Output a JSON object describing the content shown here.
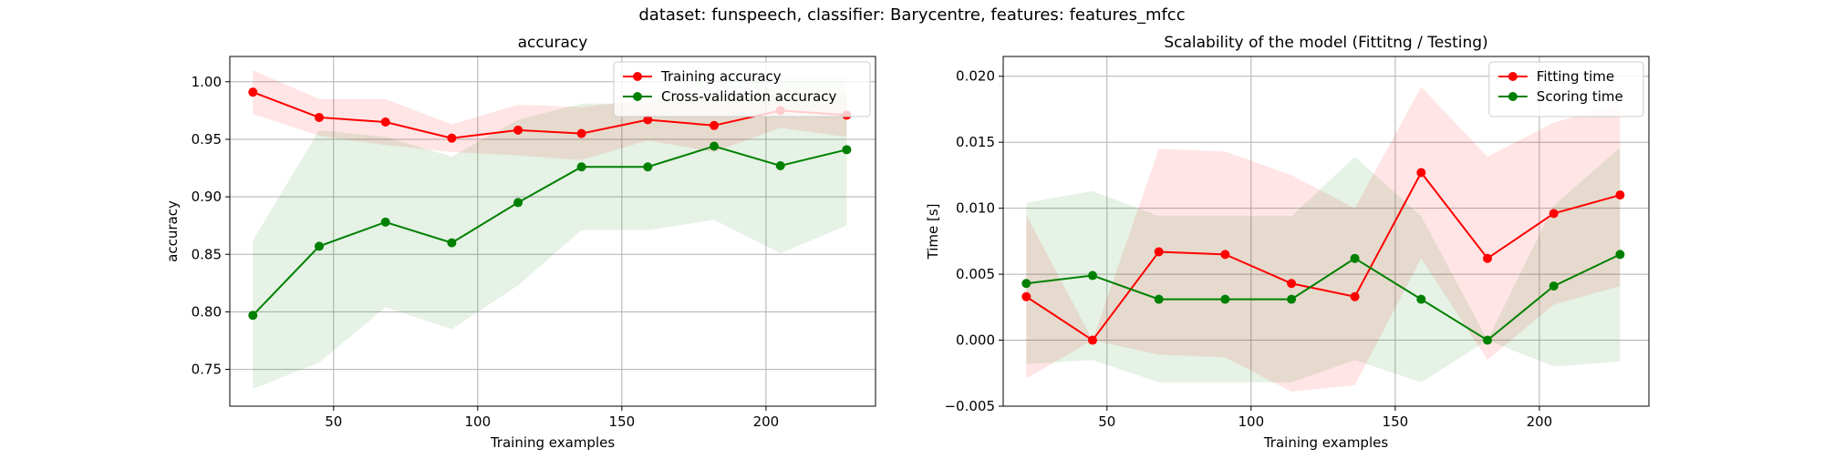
{
  "figure": {
    "suptitle": "dataset: funspeech, classifier: Barycentre, features: features_mfcc"
  },
  "chart_data": [
    {
      "type": "line",
      "title": "accuracy",
      "xlabel": "Training examples",
      "ylabel": "accuracy",
      "xlim": [
        14,
        238
      ],
      "ylim": [
        0.718,
        1.022
      ],
      "xticks": [
        50,
        100,
        150,
        200
      ],
      "yticks": [
        0.75,
        0.8,
        0.85,
        0.9,
        0.95,
        1.0
      ],
      "ytick_labels": [
        "0.75",
        "0.80",
        "0.85",
        "0.90",
        "0.95",
        "1.00"
      ],
      "grid": true,
      "legend_position": "upper-right",
      "x": [
        22,
        45,
        68,
        91,
        114,
        136,
        159,
        182,
        205,
        228
      ],
      "series": [
        {
          "name": "Training accuracy",
          "color": "#ff0000",
          "band_color": "#ff0000",
          "values": [
            0.991,
            0.969,
            0.965,
            0.951,
            0.958,
            0.955,
            0.967,
            0.962,
            0.975,
            0.971
          ],
          "upper": [
            1.01,
            0.985,
            0.985,
            0.963,
            0.98,
            0.978,
            0.985,
            0.985,
            0.99,
            0.99
          ],
          "lower": [
            0.972,
            0.953,
            0.945,
            0.939,
            0.936,
            0.932,
            0.949,
            0.939,
            0.96,
            0.952
          ]
        },
        {
          "name": "Cross-validation accuracy",
          "color": "#008000",
          "band_color": "#008000",
          "values": [
            0.797,
            0.857,
            0.878,
            0.86,
            0.895,
            0.926,
            0.926,
            0.944,
            0.927,
            0.941
          ],
          "upper": [
            0.862,
            0.958,
            0.952,
            0.935,
            0.967,
            0.981,
            0.981,
            1.008,
            1.003,
            1.007
          ],
          "lower": [
            0.733,
            0.756,
            0.804,
            0.785,
            0.823,
            0.871,
            0.871,
            0.88,
            0.851,
            0.875
          ]
        }
      ]
    },
    {
      "type": "line",
      "title": "Scalability of the model (Fittitng / Testing)",
      "xlabel": "Training examples",
      "ylabel": "Time [s]",
      "xlim": [
        14,
        238
      ],
      "ylim": [
        -0.005,
        0.0215
      ],
      "xticks": [
        50,
        100,
        150,
        200
      ],
      "yticks": [
        -0.005,
        0.0,
        0.005,
        0.01,
        0.015,
        0.02
      ],
      "ytick_labels": [
        "−0.005",
        "0.000",
        "0.005",
        "0.010",
        "0.015",
        "0.020"
      ],
      "grid": true,
      "legend_position": "upper-right",
      "x": [
        22,
        45,
        68,
        91,
        114,
        136,
        159,
        182,
        205,
        228
      ],
      "series": [
        {
          "name": "Fitting time",
          "color": "#ff0000",
          "band_color": "#ff0000",
          "values": [
            0.0033,
            0.0,
            0.0067,
            0.0065,
            0.0043,
            0.0033,
            0.0127,
            0.0062,
            0.0096,
            0.011
          ],
          "upper": [
            0.0095,
            0.0,
            0.0145,
            0.0143,
            0.0125,
            0.01,
            0.0192,
            0.0139,
            0.0165,
            0.0179
          ],
          "lower": [
            -0.0029,
            0.0,
            -0.0011,
            -0.0013,
            -0.0039,
            -0.0034,
            0.0062,
            -0.0015,
            0.0027,
            0.0041
          ]
        },
        {
          "name": "Scoring time",
          "color": "#008000",
          "band_color": "#008000",
          "values": [
            0.0043,
            0.0049,
            0.0031,
            0.0031,
            0.0031,
            0.0062,
            0.0031,
            0.0,
            0.0041,
            0.0065
          ],
          "upper": [
            0.0104,
            0.0113,
            0.0094,
            0.0094,
            0.0094,
            0.0139,
            0.0094,
            0.0,
            0.0102,
            0.0146
          ],
          "lower": [
            -0.0018,
            -0.0015,
            -0.0032,
            -0.0032,
            -0.0032,
            -0.0015,
            -0.0032,
            0.0,
            -0.002,
            -0.0016
          ]
        }
      ]
    }
  ]
}
